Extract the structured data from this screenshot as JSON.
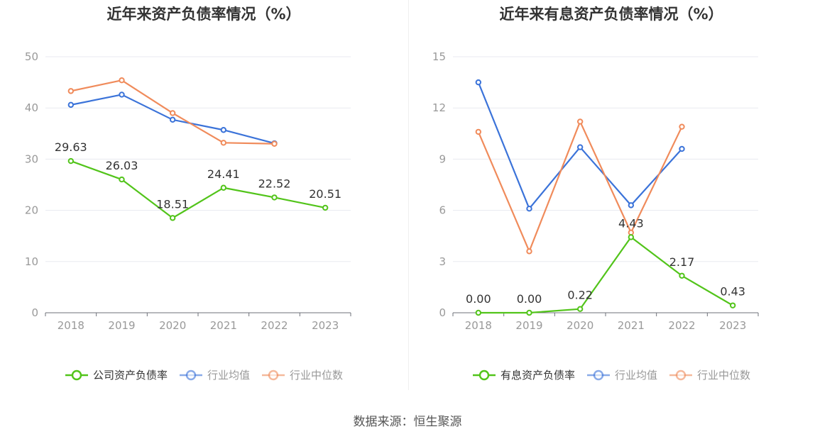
{
  "colors": {
    "company": "#52c41a",
    "average": "#3b73d9",
    "median": "#f08b5b",
    "axis": "#999999",
    "grid": "#e8eaf0",
    "label": "#333333"
  },
  "source_text": "数据来源：恒生聚源",
  "chart_data": [
    {
      "type": "line",
      "title": "近年来资产负债率情况（%）",
      "x": [
        "2018",
        "2019",
        "2020",
        "2021",
        "2022",
        "2023"
      ],
      "ylim": [
        0,
        50
      ],
      "yticks": [
        "0",
        "10",
        "20",
        "30",
        "40",
        "50"
      ],
      "grid": true,
      "legend_position": "bottom",
      "series": [
        {
          "name": "公司资产负债率",
          "key": "company",
          "values": [
            29.63,
            26.03,
            18.51,
            24.41,
            22.52,
            20.51
          ],
          "labels": [
            "29.63",
            "26.03",
            "18.51",
            "24.41",
            "22.52",
            "20.51"
          ],
          "dim": false
        },
        {
          "name": "行业均值",
          "key": "average",
          "values": [
            40.6,
            42.6,
            37.7,
            35.7,
            33.1,
            null
          ],
          "dim": true
        },
        {
          "name": "行业中位数",
          "key": "median",
          "values": [
            43.3,
            45.4,
            39.0,
            33.2,
            33.0,
            null
          ],
          "dim": true
        }
      ]
    },
    {
      "type": "line",
      "title": "近年来有息资产负债率情况（%）",
      "x": [
        "2018",
        "2019",
        "2020",
        "2021",
        "2022",
        "2023"
      ],
      "ylim": [
        0,
        15
      ],
      "yticks": [
        "0",
        "3",
        "6",
        "9",
        "12",
        "15"
      ],
      "grid": true,
      "legend_position": "bottom",
      "series": [
        {
          "name": "有息资产负债率",
          "key": "company",
          "values": [
            0.0,
            0.0,
            0.22,
            4.43,
            2.17,
            0.43
          ],
          "labels": [
            "0.00",
            "0.00",
            "0.22",
            "4.43",
            "2.17",
            "0.43"
          ],
          "dim": false
        },
        {
          "name": "行业均值",
          "key": "average",
          "values": [
            13.5,
            6.1,
            9.7,
            6.3,
            9.6,
            null
          ],
          "dim": true
        },
        {
          "name": "行业中位数",
          "key": "median",
          "values": [
            10.6,
            3.6,
            11.2,
            4.7,
            10.9,
            null
          ],
          "dim": true
        }
      ]
    }
  ]
}
